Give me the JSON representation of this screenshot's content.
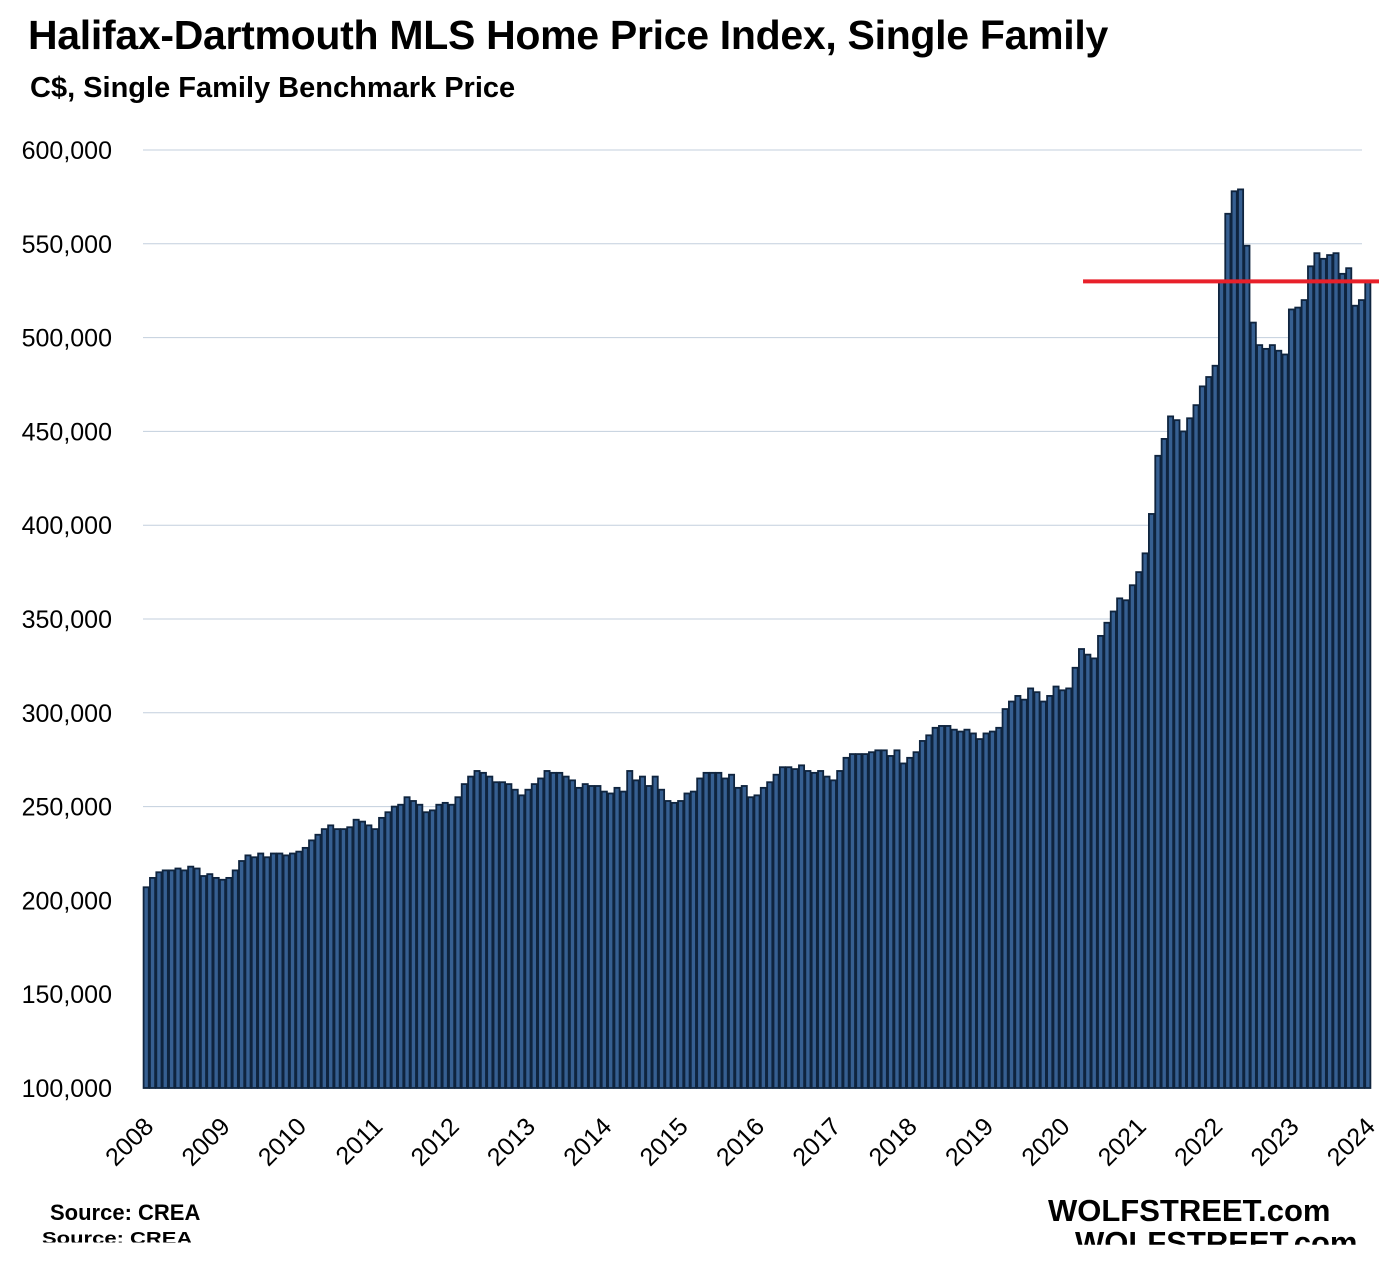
{
  "chart_data": {
    "type": "bar",
    "title": "Halifax-Dartmouth MLS Home Price Index, Single Family",
    "subtitle": "C$, Single Family Benchmark Price",
    "xlabel": "",
    "ylabel": "",
    "ylim": [
      100000,
      600000
    ],
    "yticks": [
      "100,000",
      "150,000",
      "200,000",
      "250,000",
      "300,000",
      "350,000",
      "400,000",
      "450,000",
      "500,000",
      "550,000",
      "600,000"
    ],
    "ytick_values": [
      100000,
      150000,
      200000,
      250000,
      300000,
      350000,
      400000,
      450000,
      500000,
      550000,
      600000
    ],
    "xticks": [
      "2008",
      "2009",
      "2010",
      "2011",
      "2012",
      "2013",
      "2014",
      "2015",
      "2016",
      "2017",
      "2018",
      "2019",
      "2020",
      "2021",
      "2022",
      "2023",
      "2024"
    ],
    "frequency": "monthly",
    "start": "2008-01",
    "grid": true,
    "bar_color": "#365F91",
    "bar_edge_color": "#0F243E",
    "reference_line": {
      "value": 530000,
      "color": "#E8202A",
      "from": "2020-06"
    },
    "values": [
      207000,
      212000,
      215000,
      216000,
      216000,
      217000,
      216000,
      218000,
      217000,
      213000,
      214000,
      212000,
      211000,
      212000,
      216000,
      221000,
      224000,
      223000,
      225000,
      223000,
      225000,
      225000,
      224000,
      225000,
      226000,
      228000,
      232000,
      235000,
      238000,
      240000,
      238000,
      238000,
      239000,
      243000,
      242000,
      240000,
      238000,
      244000,
      247000,
      250000,
      251000,
      255000,
      253000,
      251000,
      247000,
      248000,
      251000,
      252000,
      251000,
      255000,
      262000,
      266000,
      269000,
      268000,
      266000,
      263000,
      263000,
      262000,
      259000,
      256000,
      259000,
      262000,
      265000,
      269000,
      268000,
      268000,
      266000,
      264000,
      260000,
      262000,
      261000,
      261000,
      258000,
      257000,
      260000,
      258000,
      269000,
      264000,
      266000,
      261000,
      266000,
      259000,
      253000,
      252000,
      253000,
      257000,
      258000,
      265000,
      268000,
      268000,
      268000,
      265000,
      267000,
      260000,
      261000,
      255000,
      256000,
      260000,
      263000,
      267000,
      271000,
      271000,
      270000,
      272000,
      269000,
      268000,
      269000,
      266000,
      264000,
      269000,
      276000,
      278000,
      278000,
      278000,
      279000,
      280000,
      280000,
      277000,
      280000,
      273000,
      276000,
      279000,
      285000,
      288000,
      292000,
      293000,
      293000,
      291000,
      290000,
      291000,
      289000,
      286000,
      289000,
      290000,
      292000,
      302000,
      306000,
      309000,
      307000,
      313000,
      311000,
      306000,
      309000,
      314000,
      312000,
      313000,
      324000,
      334000,
      331000,
      329000,
      341000,
      348000,
      354000,
      361000,
      360000,
      368000,
      375000,
      385000,
      406000,
      437000,
      446000,
      458000,
      456000,
      450000,
      457000,
      464000,
      474000,
      479000,
      485000,
      530000,
      566000,
      578000,
      579000,
      549000,
      508000,
      496000,
      494000,
      496000,
      493000,
      491000,
      515000,
      516000,
      520000,
      538000,
      545000,
      542000,
      544000,
      545000,
      534000,
      537000,
      517000,
      520000,
      530000
    ]
  },
  "footer": {
    "source": "Source: CREA",
    "brand": "WOLFSTREET.com"
  }
}
